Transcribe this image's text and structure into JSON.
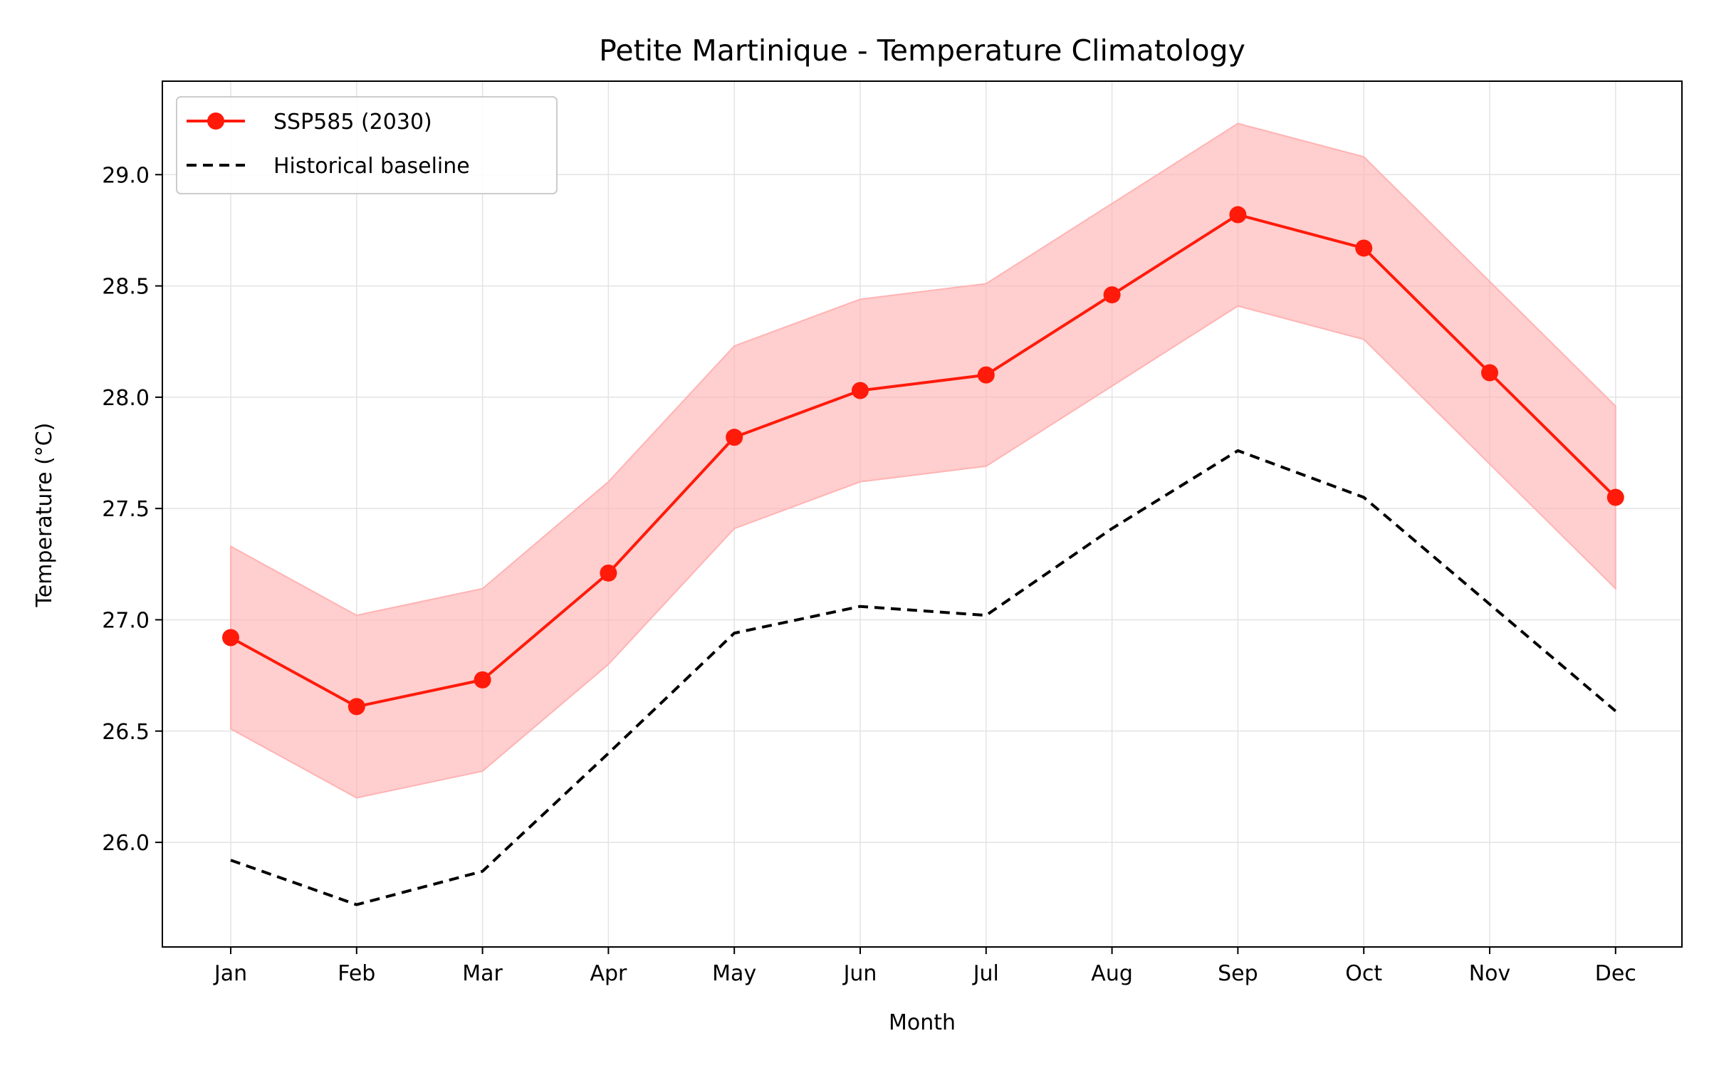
{
  "chart_data": {
    "type": "line",
    "title": "Petite Martinique - Temperature Climatology",
    "xlabel": "Month",
    "ylabel": "Temperature (°C)",
    "categories": [
      "Jan",
      "Feb",
      "Mar",
      "Apr",
      "May",
      "Jun",
      "Jul",
      "Aug",
      "Sep",
      "Oct",
      "Nov",
      "Dec"
    ],
    "ylim": [
      25.53,
      29.42
    ],
    "yticks": [
      "26.0",
      "26.5",
      "27.0",
      "27.5",
      "28.0",
      "28.5",
      "29.0"
    ],
    "grid": true,
    "legend_position": "top-left",
    "series": [
      {
        "name": "SSP585 (2030)",
        "style": "solid-with-markers",
        "color": "#ff1a0a",
        "values": [
          26.92,
          26.61,
          26.73,
          27.21,
          27.82,
          28.03,
          28.1,
          28.46,
          28.82,
          28.67,
          28.11,
          27.55
        ],
        "band_lower": [
          26.51,
          26.2,
          26.32,
          26.8,
          27.41,
          27.62,
          27.69,
          28.05,
          28.41,
          28.26,
          27.7,
          27.14
        ],
        "band_upper": [
          27.33,
          27.02,
          27.14,
          27.62,
          28.23,
          28.44,
          28.51,
          28.87,
          29.23,
          29.08,
          28.52,
          27.96
        ],
        "band_color": "#ffb3b3"
      },
      {
        "name": "Historical baseline",
        "style": "dashed",
        "color": "#000000",
        "values": [
          25.92,
          25.72,
          25.87,
          26.4,
          26.94,
          27.06,
          27.02,
          27.41,
          27.76,
          27.55,
          27.07,
          26.59
        ]
      }
    ]
  }
}
